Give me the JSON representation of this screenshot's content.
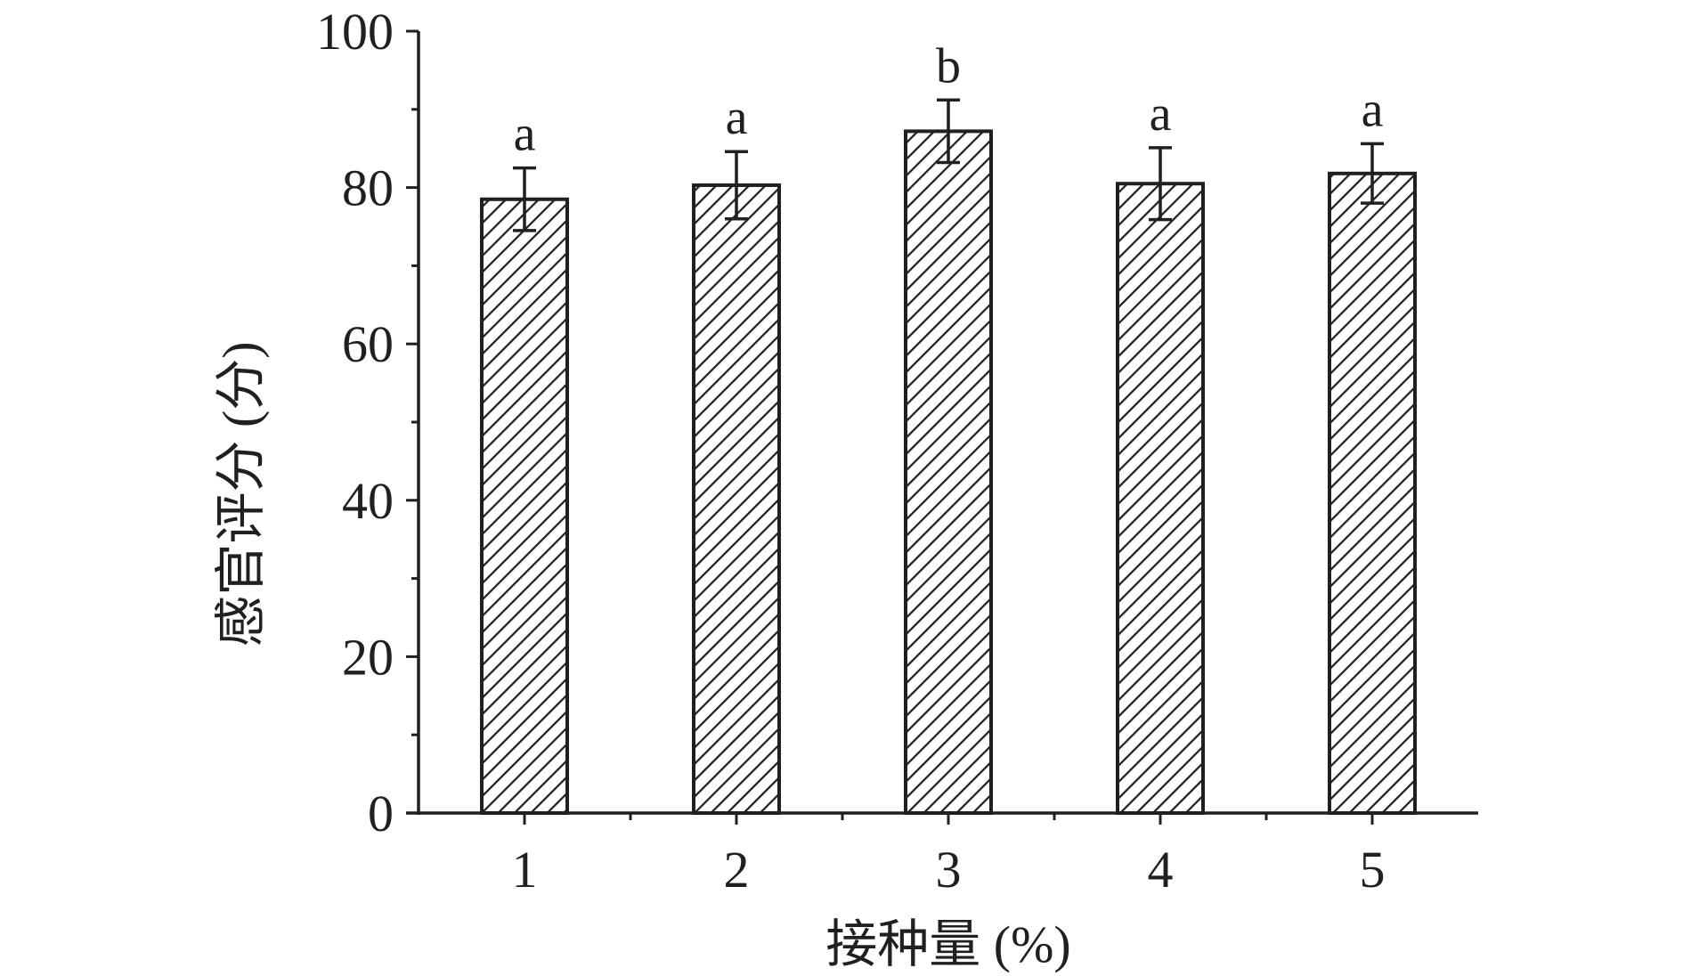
{
  "chart_data": {
    "type": "bar",
    "title": "",
    "xlabel": "接种量 (%)",
    "ylabel": "感官评分 (分)",
    "categories": [
      "1",
      "2",
      "3",
      "4",
      "5"
    ],
    "values": [
      78.5,
      80.3,
      87.2,
      80.5,
      81.8
    ],
    "errors": [
      4.0,
      4.3,
      4.0,
      4.6,
      3.8
    ],
    "significance_labels": [
      "a",
      "a",
      "b",
      "a",
      "a"
    ],
    "ylim": [
      0,
      100
    ],
    "yticks": [
      "0",
      "20",
      "40",
      "60",
      "80",
      "100"
    ],
    "bar_fill": "diagonal hatch",
    "colors": {
      "ink": "#231f20",
      "background": "#ffffff"
    },
    "grid": false,
    "legend": "none"
  }
}
